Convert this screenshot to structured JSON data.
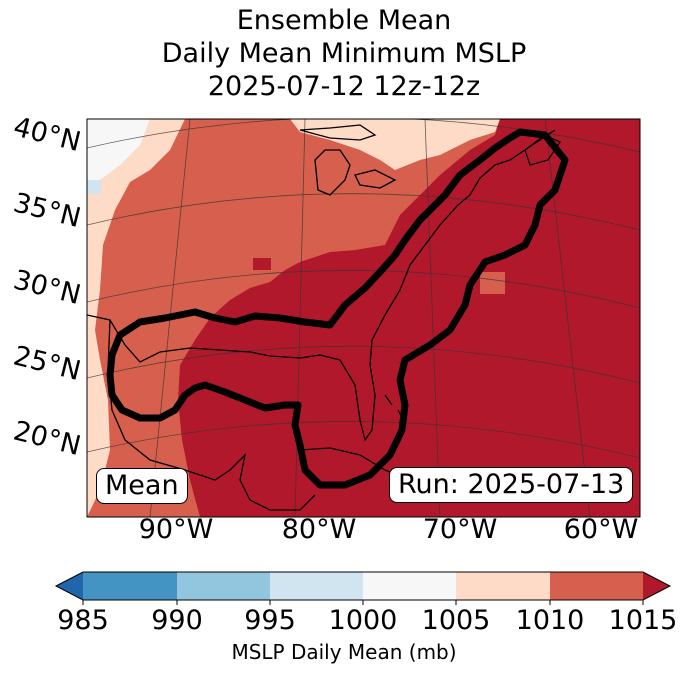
{
  "title": {
    "line1": "Ensemble Mean",
    "line2": "Daily Mean Minimum MSLP",
    "line3": "2025-07-12 12z-12z"
  },
  "map": {
    "lat_labels": [
      "40°N",
      "35°N",
      "30°N",
      "25°N",
      "20°N"
    ],
    "lon_labels": [
      "90°W",
      "80°W",
      "70°W",
      "60°W"
    ],
    "mean_box": "Mean",
    "run_box": "Run: 2025-07-13",
    "dominant_color": "#b2182b"
  },
  "colorbar": {
    "ticks": [
      "985",
      "990",
      "995",
      "1000",
      "1005",
      "1010",
      "1015"
    ],
    "label": "MSLP Daily Mean (mb)",
    "colors": [
      "#2166ac",
      "#4393c3",
      "#92c5de",
      "#d1e5f0",
      "#f7f7f7",
      "#fddbc7",
      "#d6604d",
      "#b2182b"
    ]
  }
}
